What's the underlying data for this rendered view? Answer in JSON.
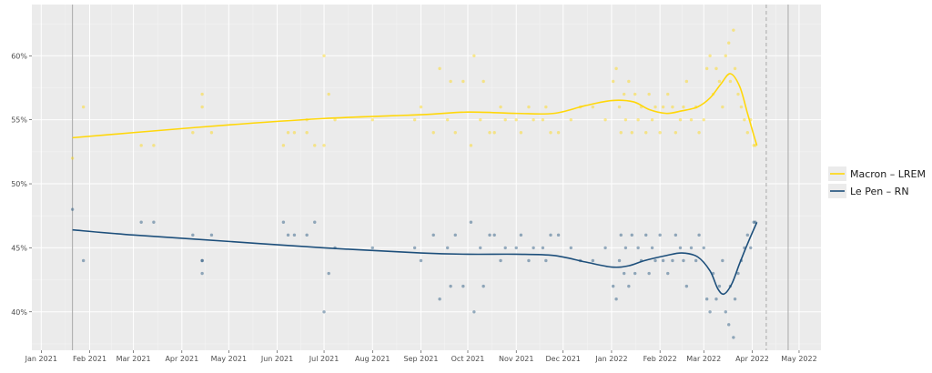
{
  "chart_data": {
    "type": "scatter",
    "title": "",
    "xlabel": "",
    "ylabel": "",
    "x_axis": {
      "type": "date",
      "range": [
        "2020-12-26",
        "2022-05-15"
      ],
      "ticks": [
        {
          "date": "2021-01-01",
          "label": "Jan 2021"
        },
        {
          "date": "2021-02-01",
          "label": "Feb 2021"
        },
        {
          "date": "2021-03-01",
          "label": "Mar 2021"
        },
        {
          "date": "2021-04-01",
          "label": "Apr 2021"
        },
        {
          "date": "2021-05-01",
          "label": "May 2021"
        },
        {
          "date": "2021-06-01",
          "label": "Jun 2021"
        },
        {
          "date": "2021-07-01",
          "label": "Jul 2021"
        },
        {
          "date": "2021-08-01",
          "label": "Aug 2021"
        },
        {
          "date": "2021-09-01",
          "label": "Sep 2021"
        },
        {
          "date": "2021-10-01",
          "label": "Oct 2021"
        },
        {
          "date": "2021-11-01",
          "label": "Nov 2021"
        },
        {
          "date": "2021-12-01",
          "label": "Dec 2021"
        },
        {
          "date": "2022-01-01",
          "label": "Jan 2022"
        },
        {
          "date": "2022-02-01",
          "label": "Feb 2022"
        },
        {
          "date": "2022-03-01",
          "label": "Mar 2022"
        },
        {
          "date": "2022-04-01",
          "label": "Apr 2022"
        },
        {
          "date": "2022-05-01",
          "label": "May 2022"
        }
      ]
    },
    "y_axis": {
      "range": [
        37,
        64
      ],
      "ticks": [
        {
          "value": 40,
          "label": "40%"
        },
        {
          "value": 45,
          "label": "45%"
        },
        {
          "value": 50,
          "label": "50%"
        },
        {
          "value": 55,
          "label": "55%"
        },
        {
          "value": 60,
          "label": "60%"
        }
      ]
    },
    "grid": true,
    "legend_position": "right",
    "reference_lines": [
      {
        "date": "2021-01-21",
        "style": "solid"
      },
      {
        "date": "2022-04-10",
        "style": "dashed"
      },
      {
        "date": "2022-04-24",
        "style": "solid"
      }
    ],
    "series": [
      {
        "name": "Macron – LREM",
        "color": "#FFD70A",
        "trend": [
          [
            "2021-01-21",
            53.6
          ],
          [
            "2021-03-01",
            54.0
          ],
          [
            "2021-05-01",
            54.6
          ],
          [
            "2021-07-01",
            55.1
          ],
          [
            "2021-09-01",
            55.4
          ],
          [
            "2021-10-01",
            55.6
          ],
          [
            "2021-11-01",
            55.5
          ],
          [
            "2021-11-25",
            55.5
          ],
          [
            "2021-12-15",
            56.1
          ],
          [
            "2022-01-01",
            56.5
          ],
          [
            "2022-01-15",
            56.4
          ],
          [
            "2022-01-25",
            55.8
          ],
          [
            "2022-02-05",
            55.5
          ],
          [
            "2022-02-15",
            55.7
          ],
          [
            "2022-02-25",
            56.0
          ],
          [
            "2022-03-05",
            56.7
          ],
          [
            "2022-03-12",
            57.8
          ],
          [
            "2022-03-18",
            58.6
          ],
          [
            "2022-03-24",
            57.6
          ],
          [
            "2022-03-29",
            55.5
          ],
          [
            "2022-04-02",
            53.8
          ],
          [
            "2022-04-04",
            53.0
          ]
        ],
        "points": [
          [
            "2021-01-21",
            52
          ],
          [
            "2021-01-28",
            56
          ],
          [
            "2021-03-06",
            53
          ],
          [
            "2021-03-14",
            53
          ],
          [
            "2021-04-08",
            54
          ],
          [
            "2021-04-14",
            56
          ],
          [
            "2021-04-14",
            57
          ],
          [
            "2021-04-20",
            54
          ],
          [
            "2021-06-05",
            53
          ],
          [
            "2021-06-08",
            54
          ],
          [
            "2021-06-12",
            54
          ],
          [
            "2021-06-20",
            55
          ],
          [
            "2021-06-20",
            54
          ],
          [
            "2021-06-25",
            53
          ],
          [
            "2021-07-01",
            53
          ],
          [
            "2021-07-01",
            60
          ],
          [
            "2021-07-04",
            57
          ],
          [
            "2021-07-08",
            55
          ],
          [
            "2021-08-01",
            55
          ],
          [
            "2021-08-28",
            55
          ],
          [
            "2021-09-01",
            56
          ],
          [
            "2021-09-09",
            54
          ],
          [
            "2021-09-13",
            59
          ],
          [
            "2021-09-18",
            55
          ],
          [
            "2021-09-20",
            58
          ],
          [
            "2021-09-23",
            54
          ],
          [
            "2021-09-28",
            58
          ],
          [
            "2021-10-03",
            53
          ],
          [
            "2021-10-05",
            60
          ],
          [
            "2021-10-09",
            55
          ],
          [
            "2021-10-11",
            58
          ],
          [
            "2021-10-15",
            54
          ],
          [
            "2021-10-18",
            54
          ],
          [
            "2021-10-22",
            56
          ],
          [
            "2021-10-25",
            55
          ],
          [
            "2021-11-01",
            55
          ],
          [
            "2021-11-04",
            54
          ],
          [
            "2021-11-09",
            56
          ],
          [
            "2021-11-12",
            55
          ],
          [
            "2021-11-18",
            55
          ],
          [
            "2021-11-20",
            56
          ],
          [
            "2021-11-23",
            54
          ],
          [
            "2021-11-28",
            54
          ],
          [
            "2021-12-06",
            55
          ],
          [
            "2021-12-12",
            56
          ],
          [
            "2021-12-20",
            56
          ],
          [
            "2021-12-28",
            55
          ],
          [
            "2022-01-02",
            58
          ],
          [
            "2022-01-04",
            59
          ],
          [
            "2022-01-06",
            56
          ],
          [
            "2022-01-07",
            54
          ],
          [
            "2022-01-09",
            57
          ],
          [
            "2022-01-10",
            55
          ],
          [
            "2022-01-12",
            58
          ],
          [
            "2022-01-14",
            54
          ],
          [
            "2022-01-16",
            57
          ],
          [
            "2022-01-18",
            55
          ],
          [
            "2022-01-20",
            56
          ],
          [
            "2022-01-23",
            54
          ],
          [
            "2022-01-25",
            57
          ],
          [
            "2022-01-27",
            55
          ],
          [
            "2022-01-29",
            56
          ],
          [
            "2022-02-01",
            54
          ],
          [
            "2022-02-03",
            56
          ],
          [
            "2022-02-06",
            57
          ],
          [
            "2022-02-09",
            56
          ],
          [
            "2022-02-11",
            54
          ],
          [
            "2022-02-14",
            55
          ],
          [
            "2022-02-16",
            56
          ],
          [
            "2022-02-18",
            58
          ],
          [
            "2022-02-21",
            55
          ],
          [
            "2022-02-24",
            56
          ],
          [
            "2022-02-26",
            54
          ],
          [
            "2022-03-01",
            55
          ],
          [
            "2022-03-03",
            59
          ],
          [
            "2022-03-05",
            60
          ],
          [
            "2022-03-07",
            57
          ],
          [
            "2022-03-09",
            59
          ],
          [
            "2022-03-11",
            58
          ],
          [
            "2022-03-13",
            56
          ],
          [
            "2022-03-15",
            60
          ],
          [
            "2022-03-17",
            61
          ],
          [
            "2022-03-18",
            58
          ],
          [
            "2022-03-20",
            62
          ],
          [
            "2022-03-21",
            59
          ],
          [
            "2022-03-23",
            57
          ],
          [
            "2022-03-25",
            56
          ],
          [
            "2022-03-27",
            55
          ],
          [
            "2022-03-29",
            54
          ],
          [
            "2022-03-31",
            55
          ],
          [
            "2022-04-02",
            53
          ],
          [
            "2022-04-03",
            53
          ]
        ]
      },
      {
        "name": "Le Pen – RN",
        "color": "#1D4F7B",
        "trend": [
          [
            "2021-01-21",
            46.4
          ],
          [
            "2021-03-01",
            46.0
          ],
          [
            "2021-05-01",
            45.5
          ],
          [
            "2021-07-01",
            45.0
          ],
          [
            "2021-09-01",
            44.6
          ],
          [
            "2021-10-01",
            44.5
          ],
          [
            "2021-11-01",
            44.5
          ],
          [
            "2021-11-25",
            44.4
          ],
          [
            "2021-12-15",
            43.9
          ],
          [
            "2022-01-01",
            43.5
          ],
          [
            "2022-01-12",
            43.6
          ],
          [
            "2022-01-22",
            44.0
          ],
          [
            "2022-02-05",
            44.4
          ],
          [
            "2022-02-15",
            44.6
          ],
          [
            "2022-02-25",
            44.3
          ],
          [
            "2022-03-05",
            43.2
          ],
          [
            "2022-03-10",
            41.8
          ],
          [
            "2022-03-14",
            41.4
          ],
          [
            "2022-03-19",
            42.2
          ],
          [
            "2022-03-24",
            43.8
          ],
          [
            "2022-03-30",
            45.6
          ],
          [
            "2022-04-04",
            47.0
          ]
        ],
        "points": [
          [
            "2021-01-21",
            48
          ],
          [
            "2021-01-28",
            44
          ],
          [
            "2021-03-06",
            47
          ],
          [
            "2021-03-14",
            47
          ],
          [
            "2021-04-08",
            46
          ],
          [
            "2021-04-14",
            44
          ],
          [
            "2021-04-14",
            43
          ],
          [
            "2021-04-14",
            44
          ],
          [
            "2021-04-20",
            46
          ],
          [
            "2021-06-05",
            47
          ],
          [
            "2021-06-08",
            46
          ],
          [
            "2021-06-12",
            46
          ],
          [
            "2021-06-20",
            46
          ],
          [
            "2021-06-25",
            47
          ],
          [
            "2021-07-01",
            40
          ],
          [
            "2021-07-04",
            43
          ],
          [
            "2021-07-08",
            45
          ],
          [
            "2021-08-01",
            45
          ],
          [
            "2021-08-28",
            45
          ],
          [
            "2021-09-01",
            44
          ],
          [
            "2021-09-09",
            46
          ],
          [
            "2021-09-13",
            41
          ],
          [
            "2021-09-18",
            45
          ],
          [
            "2021-09-20",
            42
          ],
          [
            "2021-09-23",
            46
          ],
          [
            "2021-09-28",
            42
          ],
          [
            "2021-10-03",
            47
          ],
          [
            "2021-10-05",
            40
          ],
          [
            "2021-10-09",
            45
          ],
          [
            "2021-10-11",
            42
          ],
          [
            "2021-10-15",
            46
          ],
          [
            "2021-10-18",
            46
          ],
          [
            "2021-10-22",
            44
          ],
          [
            "2021-10-25",
            45
          ],
          [
            "2021-11-01",
            45
          ],
          [
            "2021-11-04",
            46
          ],
          [
            "2021-11-09",
            44
          ],
          [
            "2021-11-12",
            45
          ],
          [
            "2021-11-18",
            45
          ],
          [
            "2021-11-20",
            44
          ],
          [
            "2021-11-23",
            46
          ],
          [
            "2021-11-28",
            46
          ],
          [
            "2021-12-06",
            45
          ],
          [
            "2021-12-12",
            44
          ],
          [
            "2021-12-20",
            44
          ],
          [
            "2021-12-28",
            45
          ],
          [
            "2022-01-02",
            42
          ],
          [
            "2022-01-04",
            41
          ],
          [
            "2022-01-06",
            44
          ],
          [
            "2022-01-07",
            46
          ],
          [
            "2022-01-09",
            43
          ],
          [
            "2022-01-10",
            45
          ],
          [
            "2022-01-12",
            42
          ],
          [
            "2022-01-14",
            46
          ],
          [
            "2022-01-16",
            43
          ],
          [
            "2022-01-18",
            45
          ],
          [
            "2022-01-20",
            44
          ],
          [
            "2022-01-23",
            46
          ],
          [
            "2022-01-25",
            43
          ],
          [
            "2022-01-27",
            45
          ],
          [
            "2022-01-29",
            44
          ],
          [
            "2022-02-01",
            46
          ],
          [
            "2022-02-03",
            44
          ],
          [
            "2022-02-06",
            43
          ],
          [
            "2022-02-09",
            44
          ],
          [
            "2022-02-11",
            46
          ],
          [
            "2022-02-14",
            45
          ],
          [
            "2022-02-16",
            44
          ],
          [
            "2022-02-18",
            42
          ],
          [
            "2022-02-21",
            45
          ],
          [
            "2022-02-24",
            44
          ],
          [
            "2022-02-26",
            46
          ],
          [
            "2022-03-01",
            45
          ],
          [
            "2022-03-03",
            41
          ],
          [
            "2022-03-05",
            40
          ],
          [
            "2022-03-07",
            43
          ],
          [
            "2022-03-09",
            41
          ],
          [
            "2022-03-11",
            42
          ],
          [
            "2022-03-13",
            44
          ],
          [
            "2022-03-15",
            40
          ],
          [
            "2022-03-17",
            39
          ],
          [
            "2022-03-18",
            42
          ],
          [
            "2022-03-20",
            38
          ],
          [
            "2022-03-21",
            41
          ],
          [
            "2022-03-23",
            43
          ],
          [
            "2022-03-25",
            44
          ],
          [
            "2022-03-27",
            45
          ],
          [
            "2022-03-29",
            46
          ],
          [
            "2022-03-31",
            45
          ],
          [
            "2022-04-02",
            47
          ],
          [
            "2022-04-03",
            47
          ]
        ]
      }
    ]
  }
}
